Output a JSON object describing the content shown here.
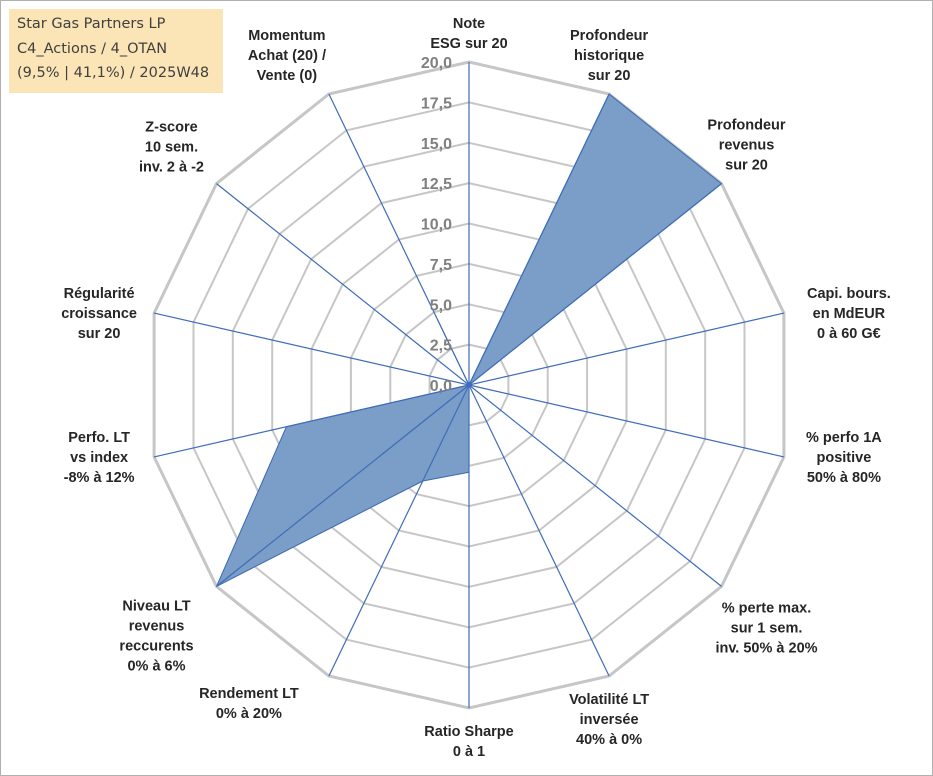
{
  "info_box": {
    "line1": "Star Gas Partners LP",
    "line2": "C4_Actions / 4_OTAN",
    "line3": "(9,5% | 41,1%) / 2025W48"
  },
  "colors": {
    "fill": "#7a9ec8",
    "series_line": "#3a68b0",
    "spoke": "#3f6cb8",
    "grid": "#c6c6c6",
    "tick_text": "#808080"
  },
  "chart_data": {
    "type": "radar",
    "title": "",
    "r_range": [
      0,
      20
    ],
    "tick_labels": [
      "0,0",
      "2,5",
      "5,0",
      "7,5",
      "10,0",
      "12,5",
      "15,0",
      "17,5",
      "20,0"
    ],
    "categories": [
      [
        "Note",
        "ESG sur 20"
      ],
      [
        "Profondeur",
        "historique",
        "sur 20"
      ],
      [
        "Profondeur",
        "revenus",
        "sur 20"
      ],
      [
        "Capi. bours.",
        "en MdEUR",
        "0 à 60 G€"
      ],
      [
        "% perfo 1A",
        "positive",
        "50% à 80%"
      ],
      [
        "% perte max.",
        "sur 1 sem.",
        "inv. 50% à 20%"
      ],
      [
        "Volatilité LT",
        "inversée",
        "40% à 0%"
      ],
      [
        "Ratio Sharpe",
        "0 à 1"
      ],
      [
        "Rendement LT",
        "0% à 20%"
      ],
      [
        "Niveau LT",
        "revenus",
        "reccurents",
        "0% à 6%"
      ],
      [
        "Perfo. LT",
        "vs index",
        "-8% à 12%"
      ],
      [
        "Régularité",
        "croissance",
        "sur 20"
      ],
      [
        "Z-score",
        "10 sem.",
        "inv. 2 à -2"
      ],
      [
        "Momentum",
        "Achat (20) /",
        "Vente (0)"
      ]
    ],
    "series": [
      {
        "name": "Star Gas Partners LP",
        "values": [
          0,
          20,
          20,
          0,
          0,
          0,
          0,
          5.4,
          6.6,
          20,
          11.6,
          0,
          0,
          4.5
        ]
      }
    ]
  }
}
